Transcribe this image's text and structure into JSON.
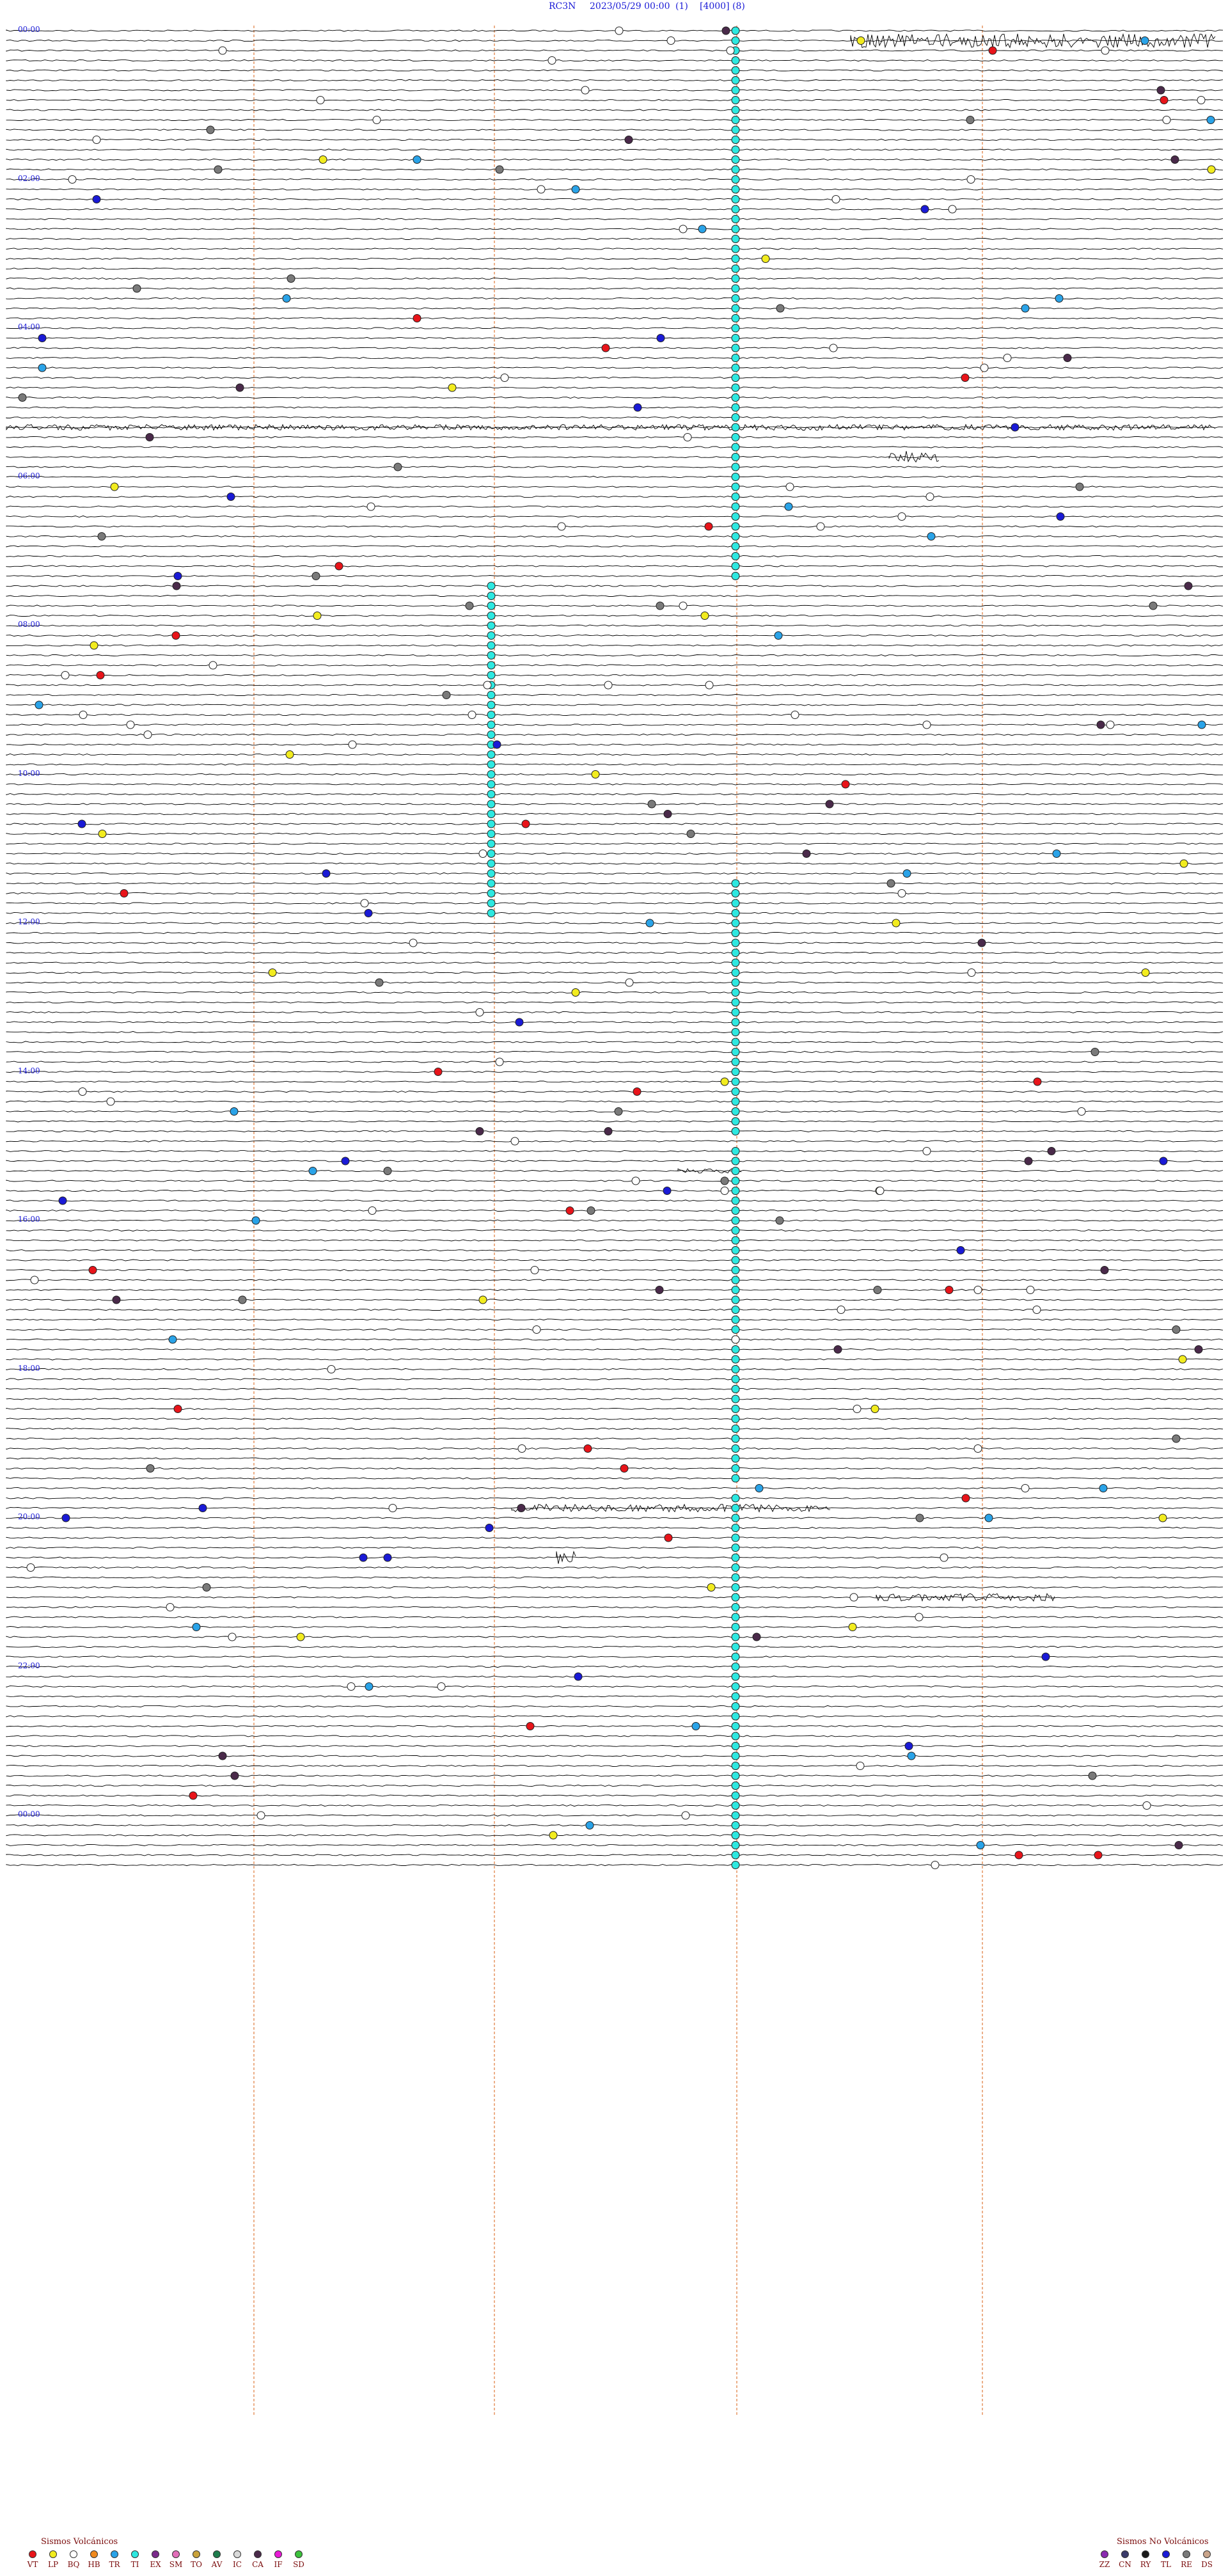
{
  "header": {
    "station": "RC3N",
    "datetime": "2023/05/29 00:00",
    "field_1": "(1)",
    "field_2": "[4000]",
    "field_3": "(8)"
  },
  "hour_labels": [
    "00:00",
    "02:00",
    "04:00",
    "06:00",
    "08:00",
    "10:00",
    "12:00",
    "14:00",
    "16:00",
    "18:00",
    "20:00",
    "22:00",
    "00:00"
  ],
  "legend_volcanic": {
    "title": "Sismos Volcánicos",
    "items": [
      {
        "code": "VT",
        "color": "#e8141a"
      },
      {
        "code": "LP",
        "color": "#f2ec1f"
      },
      {
        "code": "BQ",
        "color": "#ffffff"
      },
      {
        "code": "HB",
        "color": "#f08a1e"
      },
      {
        "code": "TR",
        "color": "#2aa3e8"
      },
      {
        "code": "TI",
        "color": "#2ee8e0"
      },
      {
        "code": "EX",
        "color": "#7a2a8a"
      },
      {
        "code": "SM",
        "color": "#e26fb9"
      },
      {
        "code": "TO",
        "color": "#c9a23a"
      },
      {
        "code": "AV",
        "color": "#1f7d4d"
      },
      {
        "code": "IC",
        "color": "#d9d9d9"
      },
      {
        "code": "CA",
        "color": "#4a2a4a"
      },
      {
        "code": "IF",
        "color": "#e81ad6"
      },
      {
        "code": "SD",
        "color": "#3cc23c"
      }
    ]
  },
  "legend_nonvolcanic": {
    "title": "Sismos No Volcánicos",
    "items": [
      {
        "code": "ZZ",
        "color": "#8a2ab0"
      },
      {
        "code": "CN",
        "color": "#3a3a6a"
      },
      {
        "code": "RY",
        "color": "#1a1a1a"
      },
      {
        "code": "TL",
        "color": "#1a1ad6"
      },
      {
        "code": "RE",
        "color": "#7a7a7a"
      },
      {
        "code": "DS",
        "color": "#c9a48a"
      }
    ]
  },
  "colors": {
    "trace": "#000000",
    "vertical_marker": "#e07a3a",
    "label": "#1a1ad6"
  }
}
